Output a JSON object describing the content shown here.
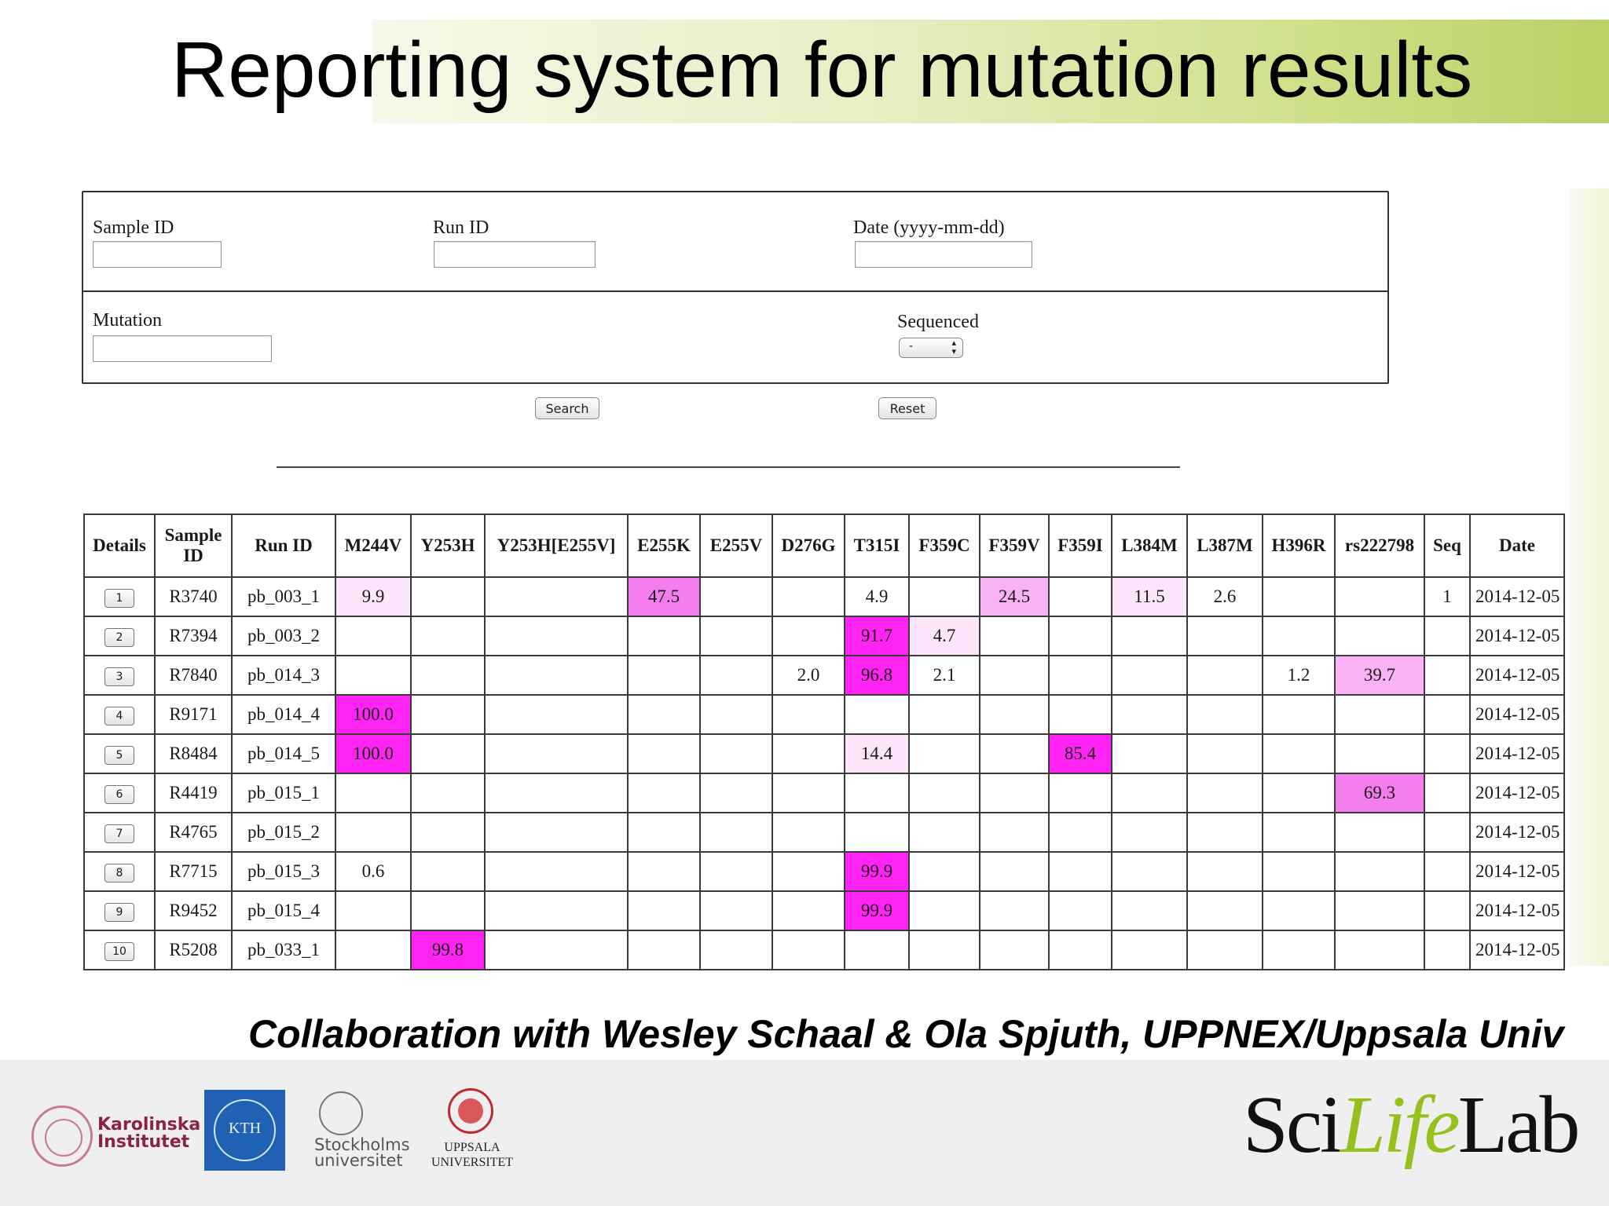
{
  "slide": {
    "title": "Reporting system for mutation results",
    "credit": "Collaboration with Wesley Schaal & Ola Spjuth, UPPNEX/Uppsala Univ"
  },
  "form": {
    "sample_id_label": "Sample ID",
    "sample_id_value": "",
    "run_id_label": "Run ID",
    "run_id_value": "",
    "date_label": "Date (yyyy-mm-dd)",
    "date_value": "",
    "mutation_label": "Mutation",
    "mutation_value": "",
    "sequenced_label": "Sequenced",
    "sequenced_value": "-",
    "search_button": "Search",
    "reset_button": "Reset"
  },
  "table": {
    "headers": [
      "Details",
      "Sample ID",
      "Run ID",
      "M244V",
      "Y253H",
      "Y253H[E255V]",
      "E255K",
      "E255V",
      "D276G",
      "T315I",
      "F359C",
      "F359V",
      "F359I",
      "L384M",
      "L387M",
      "H396R",
      "rs222798",
      "Seq",
      "Date"
    ],
    "rows": [
      {
        "details": "1",
        "sample": "R3740",
        "run": "pb_003_1",
        "cells": [
          "9.9",
          "",
          "",
          "47.5",
          "",
          "",
          "4.9",
          "",
          "24.5",
          "",
          "11.5",
          "2.6",
          "",
          ""
        ],
        "levels": [
          1,
          0,
          0,
          3,
          0,
          0,
          0,
          0,
          2,
          0,
          1,
          0,
          0,
          0
        ],
        "seq": "1",
        "date": "2014-12-05"
      },
      {
        "details": "2",
        "sample": "R7394",
        "run": "pb_003_2",
        "cells": [
          "",
          "",
          "",
          "",
          "",
          "",
          "91.7",
          "4.7",
          "",
          "",
          "",
          "",
          "",
          ""
        ],
        "levels": [
          0,
          0,
          0,
          0,
          0,
          0,
          4,
          1,
          0,
          0,
          0,
          0,
          0,
          0
        ],
        "seq": "",
        "date": "2014-12-05"
      },
      {
        "details": "3",
        "sample": "R7840",
        "run": "pb_014_3",
        "cells": [
          "",
          "",
          "",
          "",
          "",
          "2.0",
          "96.8",
          "2.1",
          "",
          "",
          "",
          "",
          "1.2",
          "39.7"
        ],
        "levels": [
          0,
          0,
          0,
          0,
          0,
          0,
          4,
          0,
          0,
          0,
          0,
          0,
          0,
          2
        ],
        "seq": "",
        "date": "2014-12-05"
      },
      {
        "details": "4",
        "sample": "R9171",
        "run": "pb_014_4",
        "cells": [
          "100.0",
          "",
          "",
          "",
          "",
          "",
          "",
          "",
          "",
          "",
          "",
          "",
          "",
          ""
        ],
        "levels": [
          4,
          0,
          0,
          0,
          0,
          0,
          0,
          0,
          0,
          0,
          0,
          0,
          0,
          0
        ],
        "seq": "",
        "date": "2014-12-05"
      },
      {
        "details": "5",
        "sample": "R8484",
        "run": "pb_014_5",
        "cells": [
          "100.0",
          "",
          "",
          "",
          "",
          "",
          "14.4",
          "",
          "",
          "85.4",
          "",
          "",
          "",
          ""
        ],
        "levels": [
          4,
          0,
          0,
          0,
          0,
          0,
          1,
          0,
          0,
          4,
          0,
          0,
          0,
          0
        ],
        "seq": "",
        "date": "2014-12-05"
      },
      {
        "details": "6",
        "sample": "R4419",
        "run": "pb_015_1",
        "cells": [
          "",
          "",
          "",
          "",
          "",
          "",
          "",
          "",
          "",
          "",
          "",
          "",
          "",
          "69.3"
        ],
        "levels": [
          0,
          0,
          0,
          0,
          0,
          0,
          0,
          0,
          0,
          0,
          0,
          0,
          0,
          3
        ],
        "seq": "",
        "date": "2014-12-05"
      },
      {
        "details": "7",
        "sample": "R4765",
        "run": "pb_015_2",
        "cells": [
          "",
          "",
          "",
          "",
          "",
          "",
          "",
          "",
          "",
          "",
          "",
          "",
          "",
          ""
        ],
        "levels": [
          0,
          0,
          0,
          0,
          0,
          0,
          0,
          0,
          0,
          0,
          0,
          0,
          0,
          0
        ],
        "seq": "",
        "date": "2014-12-05"
      },
      {
        "details": "8",
        "sample": "R7715",
        "run": "pb_015_3",
        "cells": [
          "0.6",
          "",
          "",
          "",
          "",
          "",
          "99.9",
          "",
          "",
          "",
          "",
          "",
          "",
          ""
        ],
        "levels": [
          0,
          0,
          0,
          0,
          0,
          0,
          4,
          0,
          0,
          0,
          0,
          0,
          0,
          0
        ],
        "seq": "",
        "date": "2014-12-05"
      },
      {
        "details": "9",
        "sample": "R9452",
        "run": "pb_015_4",
        "cells": [
          "",
          "",
          "",
          "",
          "",
          "",
          "99.9",
          "",
          "",
          "",
          "",
          "",
          "",
          ""
        ],
        "levels": [
          0,
          0,
          0,
          0,
          0,
          0,
          4,
          0,
          0,
          0,
          0,
          0,
          0,
          0
        ],
        "seq": "",
        "date": "2014-12-05"
      },
      {
        "details": "10",
        "sample": "R5208",
        "run": "pb_033_1",
        "cells": [
          "",
          "99.8",
          "",
          "",
          "",
          "",
          "",
          "",
          "",
          "",
          "",
          "",
          "",
          ""
        ],
        "levels": [
          0,
          4,
          0,
          0,
          0,
          0,
          0,
          0,
          0,
          0,
          0,
          0,
          0,
          0
        ],
        "seq": "",
        "date": "2014-12-05"
      }
    ]
  },
  "heat_colors": {
    "level1": "#fde6fb",
    "level2": "#f9b2f3",
    "level3": "#f47ded",
    "level4": "#ff24f4"
  },
  "logos": {
    "ki_line1": "Karolinska",
    "ki_line2": "Institutet",
    "kth": "KTH",
    "su_line1": "Stockholms",
    "su_line2": "universitet",
    "uu_line1": "UPPSALA",
    "uu_line2": "UNIVERSITET",
    "scilifelab_sci": "Sci",
    "scilifelab_life": "Life",
    "scilifelab_lab": "Lab"
  }
}
